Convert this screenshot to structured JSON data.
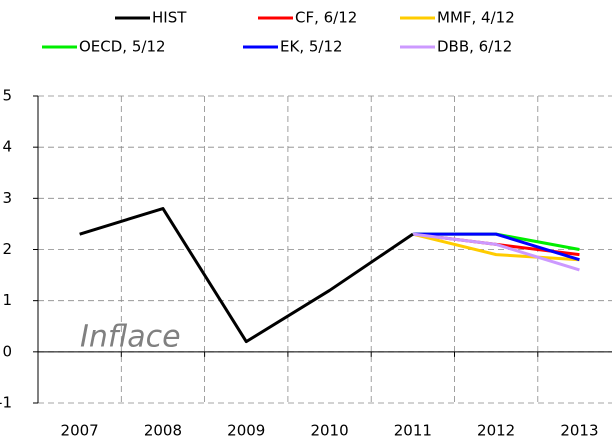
{
  "chart_data": {
    "type": "line",
    "categories": [
      "2007",
      "2008",
      "2009",
      "2010",
      "2011",
      "2012",
      "2013"
    ],
    "series": [
      {
        "name": "HIST",
        "color": "#000000",
        "values": [
          2.3,
          2.8,
          0.2,
          1.2,
          2.3,
          null,
          null
        ]
      },
      {
        "name": "CF, 6/12",
        "color": "#ff0000",
        "values": [
          null,
          null,
          null,
          null,
          2.3,
          2.1,
          1.9
        ]
      },
      {
        "name": "MMF, 4/12",
        "color": "#ffcc00",
        "values": [
          null,
          null,
          null,
          null,
          2.3,
          1.9,
          1.8
        ]
      },
      {
        "name": "OECD, 5/12",
        "color": "#00ee00",
        "values": [
          null,
          null,
          null,
          null,
          2.3,
          2.3,
          2.0
        ]
      },
      {
        "name": "EK, 5/12",
        "color": "#0000ff",
        "values": [
          null,
          null,
          null,
          null,
          2.3,
          2.3,
          1.8
        ]
      },
      {
        "name": "DBB, 6/12",
        "color": "#cc99ff",
        "values": [
          null,
          null,
          null,
          null,
          2.3,
          2.1,
          1.6
        ]
      }
    ],
    "ylim": [
      -1,
      5
    ],
    "yticks": [
      -1,
      0,
      1,
      2,
      3,
      4,
      5
    ],
    "grid": true,
    "annotation": "Inflace"
  }
}
